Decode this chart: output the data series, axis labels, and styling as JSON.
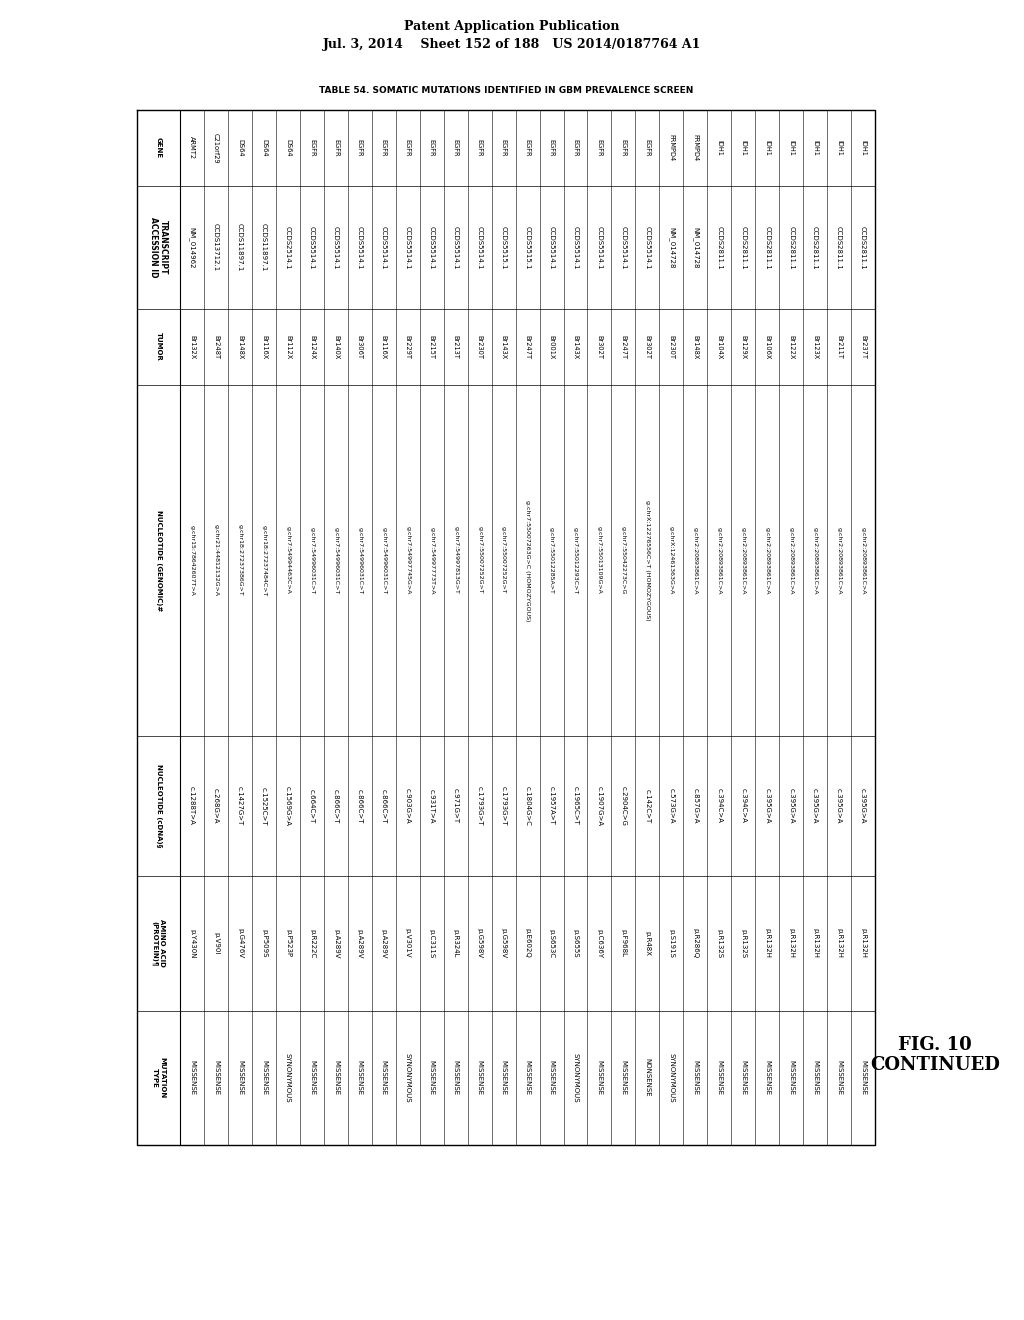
{
  "header_line1": "Patent Application Publication",
  "header_line2": "Jul. 3, 2014    Sheet 152 of 188   US 2014/0187764 A1",
  "table_title": "TABLE 54. SOMATIC MUTATIONS IDENTIFIED IN GBM PREVALENCE SCREEN",
  "col_headers": [
    "GENE",
    "TRANSCRIPT\nACCESSION ID",
    "TUMOR",
    "NUCLEOTIDE (GENOMIC)#",
    "NUCLEOTIDE (cDNA)§",
    "AMINO ACID\n(PROTEIN)¶",
    "MUTATION\nTYPE"
  ],
  "rows": [
    [
      "ARMT2",
      "NM_014962",
      "Br132X",
      "g.chr15:78642607T>A",
      "c.1288T>A",
      "p.Y430N",
      "MISSENSE"
    ],
    [
      "C21orf29",
      "CCDS13712.1",
      "Br248T",
      "g.chr21:44812132G>A",
      "c.268G>A",
      "p.V90I",
      "MISSENSE"
    ],
    [
      "DS64",
      "CCDS11897.1",
      "Br148X",
      "g.chr18:27237386G>T",
      "c.1427G>T",
      "p.G476V",
      "MISSENSE"
    ],
    [
      "DS64",
      "CCDS11897.1",
      "Br116X",
      "g.chr18:27237484C>T",
      "c.1525C>T",
      "p.P509S",
      "MISSENSE"
    ],
    [
      "DS64",
      "CCDS2514.1",
      "Br112X",
      "g.chr7:54994463C>A",
      "c.1569G>A",
      "p.P523P",
      "SYNONYMOUS"
    ],
    [
      "EGFR",
      "CCDS5514.1",
      "Br124X",
      "g.chr7:54996031C>T",
      "c.664C>T",
      "p.R222C",
      "MISSENSE"
    ],
    [
      "EGFR",
      "CCDS5514.1",
      "Br140X",
      "g.chr7:54996031C>T",
      "c.866C>T",
      "p.A289V",
      "MISSENSE"
    ],
    [
      "EGFR",
      "CCDS5514.1",
      "Br306T",
      "g.chr7:54996031C>T",
      "c.866C>T",
      "p.A289V",
      "MISSENSE"
    ],
    [
      "EGFR",
      "CCDS5514.1",
      "Br116X",
      "g.chr7:54996031C>T",
      "c.866C>T",
      "p.A289V",
      "MISSENSE"
    ],
    [
      "EGFR",
      "CCDS5514.1",
      "Br229T",
      "g.chr7:54997745G>A",
      "c.903G>A",
      "p.V301V",
      "SYNONYMOUS"
    ],
    [
      "EGFR",
      "CCDS5514.1",
      "Br215T",
      "g.chr7:54997773T>A",
      "c.931T>A",
      "p.C311S",
      "MISSENSE"
    ],
    [
      "EGFR",
      "CCDS5514.1",
      "Br213T",
      "g.chr7:54997813G>T",
      "c.971G>T",
      "p.R324L",
      "MISSENSE"
    ],
    [
      "EGFR",
      "CCDS5514.1",
      "Br230T",
      "g.chr7:55007252G>T",
      "c.1793G>T",
      "p.G598V",
      "MISSENSE"
    ],
    [
      "EGFR",
      "CCDS5515.1",
      "Br143X",
      "g.chr7:55007252G>T",
      "c.1793G>T",
      "p.G598V",
      "MISSENSE"
    ],
    [
      "EGFR",
      "CCDS5515.1",
      "Br247T",
      "g.chr7:55007263G>C (HOMOZYGOUS)",
      "c.1804G>C",
      "p.E602Q",
      "MISSENSE"
    ],
    [
      "EGFR",
      "CCDS5514.1",
      "Br001X",
      "g.chr7:55012285A>T",
      "c.1957A>T",
      "p.S653C",
      "MISSENSE"
    ],
    [
      "EGFR",
      "CCDS5514.1",
      "Br143X",
      "g.chr7:55012293C>T",
      "c.1965C>T",
      "p.S655S",
      "SYNONYMOUS"
    ],
    [
      "EGFR",
      "CCDS5514.1",
      "Br302T",
      "g.chr7:55013109G>A",
      "c.1907G>A",
      "p.C636Y",
      "MISSENSE"
    ],
    [
      "EGFR",
      "CCDS5514.1",
      "Br247T",
      "g.chr7:55042273C>G",
      "c.2904C>G",
      "p.F968L",
      "MISSENSE"
    ],
    [
      "EGFR",
      "CCDS5514.1",
      "Br302T",
      "g.chrX:12276556C>T (HOMOZYGOUS)",
      "c.142C>T",
      "p.R48X",
      "NONSENSE"
    ],
    [
      "FRMPD4",
      "NM_014728",
      "Br230T",
      "g.chrX:12461363G>A",
      "c.573G>A",
      "p.S191S",
      "SYNONYMOUS"
    ],
    [
      "FRMPD4",
      "NM_014728",
      "Br148X",
      "g.chr2:20893861C>A",
      "c.857G>A",
      "p.R286Q",
      "MISSENSE"
    ],
    [
      "IDH1",
      "CCDS2811.1",
      "Br104X",
      "g.chr2:20893861C>A",
      "c.394C>A",
      "p.R132S",
      "MISSENSE"
    ],
    [
      "IDH1",
      "CCDS2811.1",
      "Br129X",
      "g.chr2:20893861C>A",
      "c.394C>A",
      "p.R132S",
      "MISSENSE"
    ],
    [
      "IDH1",
      "CCDS2811.1",
      "Br106X",
      "g.chr2:20893861C>A",
      "c.395G>A",
      "p.R132H",
      "MISSENSE"
    ],
    [
      "IDH1",
      "CCDS2811.1",
      "Br122X",
      "g.chr2:20893861C>A",
      "c.395G>A",
      "p.R132H",
      "MISSENSE"
    ],
    [
      "IDH1",
      "CCDS2811.1",
      "Br123X",
      "g.chr2:20893861C>A",
      "c.395G>A",
      "p.R132H",
      "MISSENSE"
    ],
    [
      "IDH1",
      "CCDS2811.1",
      "Br211T",
      "g.chr2:20893861C>A",
      "c.395G>A",
      "p.R132H",
      "MISSENSE"
    ],
    [
      "IDH1",
      "CCDS2811.1",
      "Br237T",
      "g.chr2:20893861C>A",
      "c.395G>A",
      "p.R132H",
      "MISSENSE"
    ]
  ],
  "fig_label": "FIG. 10\nCONTINUED",
  "bg_color": "#ffffff",
  "text_color": "#000000"
}
